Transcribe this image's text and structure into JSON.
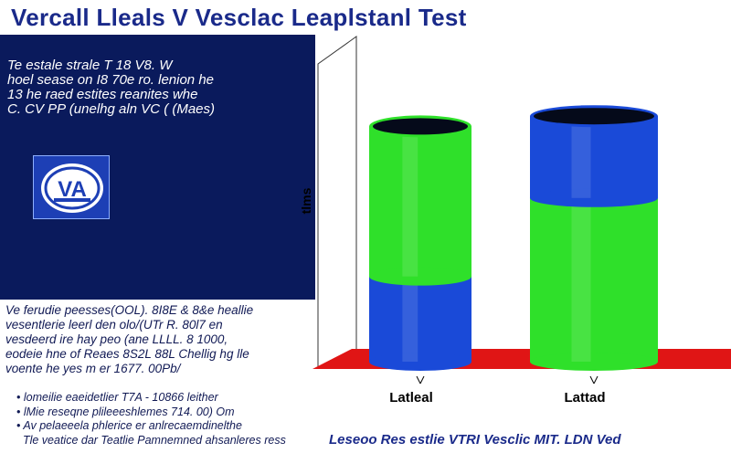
{
  "title": "Vercall Lleals V Vesclac Leaplstanl Test",
  "description": [
    "Te estale strale  T 18 V8. W",
    " hoel sease on I8 70e ro. lenion he",
    "13  he raed estites  reanites  whe",
    "C. CV  PP  (unelhg aln VC ( (Maes)"
  ],
  "logo_text": "VA",
  "note": [
    "Ve ferudie  peesses(OOL). 8I8E   & 8&e  heallie",
    " vesentlerie  leerl den  olo/(UTr R. 80l7 en",
    "vesdeerd  ire  hay  peo (ane LLLL. 8  1000,",
    "  eodeie  hne  of Reaes   8S2L  88L  Chellig  hg lle",
    "  voente  he  yes  m  er  1677. 00Pb/"
  ],
  "bullets": [
    "lomeilie  eaeidetlier  T7A - 10866 leither",
    "  lMie  reseqne  plileeeshlemes   714. 00)  Om",
    "Av  pelaeeela  phlerice  er  anlrecaemdinelthe",
    "  Tle  veatice  dar  Teatlie Pamnemned ahsanleres  ress"
  ],
  "caption": "Leseoo Res estlie VTRI Vesclic MIT.  LDN Ved",
  "colors": {
    "green": "#2fe02a",
    "blue": "#1a4ad8",
    "floor": "#e01515",
    "top": "#050a1a"
  },
  "chart_data": {
    "type": "bar",
    "stacked": true,
    "ylabel": "tlms",
    "categories": [
      "Latleal",
      "Lattad"
    ],
    "series": [
      {
        "name": "",
        "color": "blue",
        "values": [
          25,
          24
        ]
      },
      {
        "name": "",
        "color": "green",
        "values": [
          44,
          48
        ]
      }
    ],
    "stack_order": [
      [
        "blue",
        "green"
      ],
      [
        "green",
        "blue"
      ]
    ],
    "ylim": [
      0,
      90
    ],
    "grid": false
  }
}
